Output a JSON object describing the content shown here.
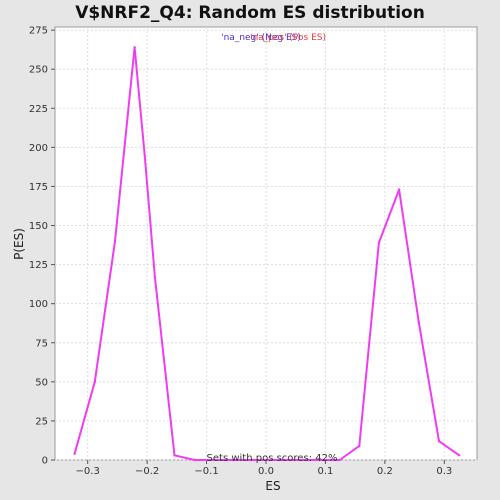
{
  "chart_data": {
    "type": "line",
    "title": "V$NRF2_Q4: Random ES distribution",
    "xlabel": "ES",
    "ylabel": "P(ES)",
    "xlim": [
      -0.355,
      0.355
    ],
    "ylim": [
      0,
      277
    ],
    "xticks": [
      -0.3,
      -0.2,
      -0.1,
      0.0,
      0.1,
      0.2,
      0.3
    ],
    "xtick_labels": [
      "−0.3",
      "−0.2",
      "−0.1",
      "0.0",
      "0.1",
      "0.2",
      "0.3"
    ],
    "yticks": [
      0,
      25,
      50,
      75,
      100,
      125,
      150,
      175,
      200,
      225,
      250,
      275
    ],
    "grid": true,
    "legend": {
      "placement": "top-center",
      "entries": [
        {
          "label": "'na_neg' (Neg ES)",
          "color": "#4a2ad6"
        },
        {
          "label": "'na_pos' (Pos ES)",
          "color": "#e83a3a"
        }
      ]
    },
    "annotation": "Sets with pos scores: 42%",
    "series": [
      {
        "color": "#f03cf0",
        "points": [
          [
            -0.322,
            4
          ],
          [
            -0.288,
            50
          ],
          [
            -0.254,
            140
          ],
          [
            -0.221,
            264
          ],
          [
            -0.204,
            195
          ],
          [
            -0.187,
            117
          ],
          [
            -0.154,
            3
          ],
          [
            -0.12,
            0
          ],
          [
            -0.087,
            0
          ],
          [
            -0.053,
            0
          ],
          [
            -0.02,
            0
          ],
          [
            0.014,
            0
          ],
          [
            0.047,
            0
          ],
          [
            0.081,
            0
          ],
          [
            0.115,
            0
          ],
          [
            0.124,
            0
          ],
          [
            0.157,
            9
          ],
          [
            0.19,
            139
          ],
          [
            0.224,
            173
          ],
          [
            0.257,
            88
          ],
          [
            0.291,
            12
          ],
          [
            0.325,
            3
          ]
        ]
      }
    ]
  }
}
